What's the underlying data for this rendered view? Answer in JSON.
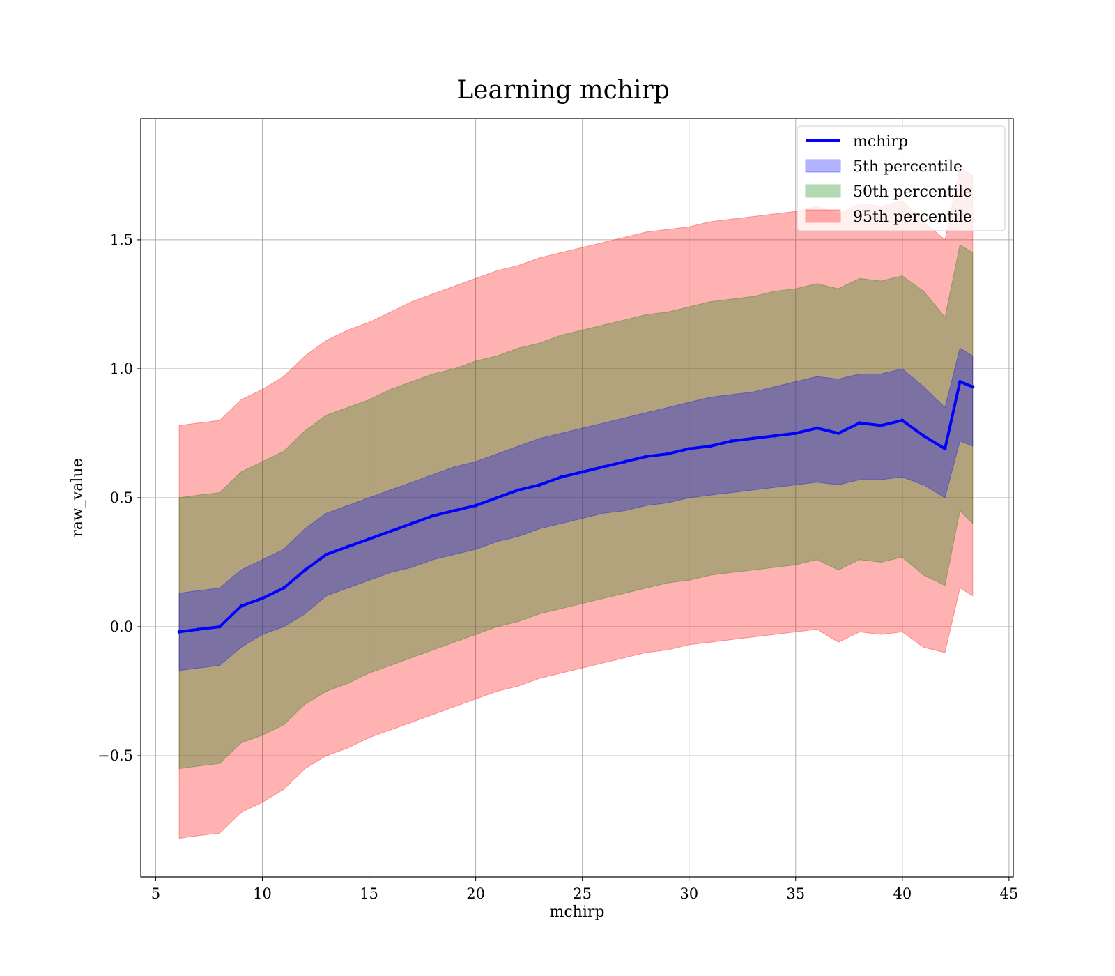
{
  "chart_data": {
    "type": "area",
    "title": "Learning mchirp",
    "xlabel": "mchirp",
    "ylabel": "raw_value",
    "xlim": [
      4.3,
      45.2
    ],
    "ylim": [
      -0.97,
      1.97
    ],
    "xticks": [
      5,
      10,
      15,
      20,
      25,
      30,
      35,
      40,
      45
    ],
    "xtick_labels": [
      "5",
      "10",
      "15",
      "20",
      "25",
      "30",
      "35",
      "40",
      "45"
    ],
    "yticks": [
      -0.5,
      0.0,
      0.5,
      1.0,
      1.5
    ],
    "ytick_labels": [
      "−0.5",
      "0.0",
      "0.5",
      "1.0",
      "1.5"
    ],
    "grid": true,
    "legend_position": "top-right",
    "x": [
      6.1,
      7,
      8,
      9,
      10,
      11,
      12,
      13,
      14,
      15,
      16,
      17,
      18,
      19,
      20,
      21,
      22,
      23,
      24,
      25,
      26,
      27,
      28,
      29,
      30,
      31,
      32,
      33,
      34,
      35,
      36,
      37,
      38,
      39,
      40,
      41,
      42,
      42.7,
      43.3
    ],
    "series": [
      {
        "name": "mchirp",
        "kind": "line",
        "color": "#0000ff",
        "values": [
          -0.02,
          -0.01,
          0.0,
          0.08,
          0.11,
          0.15,
          0.22,
          0.28,
          0.31,
          0.34,
          0.37,
          0.4,
          0.43,
          0.45,
          0.47,
          0.5,
          0.53,
          0.55,
          0.58,
          0.6,
          0.62,
          0.64,
          0.66,
          0.67,
          0.69,
          0.7,
          0.72,
          0.73,
          0.74,
          0.75,
          0.77,
          0.75,
          0.79,
          0.78,
          0.8,
          0.74,
          0.69,
          0.95,
          0.93
        ]
      },
      {
        "name": "5th percentile",
        "kind": "band",
        "color": "#0000ff",
        "lower": [
          -0.17,
          -0.16,
          -0.15,
          -0.08,
          -0.03,
          0.0,
          0.05,
          0.12,
          0.15,
          0.18,
          0.21,
          0.23,
          0.26,
          0.28,
          0.3,
          0.33,
          0.35,
          0.38,
          0.4,
          0.42,
          0.44,
          0.45,
          0.47,
          0.48,
          0.5,
          0.51,
          0.52,
          0.53,
          0.54,
          0.55,
          0.56,
          0.55,
          0.57,
          0.57,
          0.58,
          0.55,
          0.5,
          0.72,
          0.7
        ],
        "upper": [
          0.13,
          0.14,
          0.15,
          0.22,
          0.26,
          0.3,
          0.38,
          0.44,
          0.47,
          0.5,
          0.53,
          0.56,
          0.59,
          0.62,
          0.64,
          0.67,
          0.7,
          0.73,
          0.75,
          0.77,
          0.79,
          0.81,
          0.83,
          0.85,
          0.87,
          0.89,
          0.9,
          0.91,
          0.93,
          0.95,
          0.97,
          0.96,
          0.98,
          0.98,
          1.0,
          0.93,
          0.85,
          1.08,
          1.05
        ]
      },
      {
        "name": "50th percentile",
        "kind": "band",
        "color": "#008000",
        "lower": [
          -0.55,
          -0.54,
          -0.53,
          -0.45,
          -0.42,
          -0.38,
          -0.3,
          -0.25,
          -0.22,
          -0.18,
          -0.15,
          -0.12,
          -0.09,
          -0.06,
          -0.03,
          0.0,
          0.02,
          0.05,
          0.07,
          0.09,
          0.11,
          0.13,
          0.15,
          0.17,
          0.18,
          0.2,
          0.21,
          0.22,
          0.23,
          0.24,
          0.26,
          0.22,
          0.26,
          0.25,
          0.27,
          0.2,
          0.16,
          0.45,
          0.4
        ],
        "upper": [
          0.5,
          0.51,
          0.52,
          0.6,
          0.64,
          0.68,
          0.76,
          0.82,
          0.85,
          0.88,
          0.92,
          0.95,
          0.98,
          1.0,
          1.03,
          1.05,
          1.08,
          1.1,
          1.13,
          1.15,
          1.17,
          1.19,
          1.21,
          1.22,
          1.24,
          1.26,
          1.27,
          1.28,
          1.3,
          1.31,
          1.33,
          1.31,
          1.35,
          1.34,
          1.36,
          1.3,
          1.2,
          1.48,
          1.45
        ]
      },
      {
        "name": "95th percentile",
        "kind": "band",
        "color": "#ff0000",
        "lower": [
          -0.82,
          -0.81,
          -0.8,
          -0.72,
          -0.68,
          -0.63,
          -0.55,
          -0.5,
          -0.47,
          -0.43,
          -0.4,
          -0.37,
          -0.34,
          -0.31,
          -0.28,
          -0.25,
          -0.23,
          -0.2,
          -0.18,
          -0.16,
          -0.14,
          -0.12,
          -0.1,
          -0.09,
          -0.07,
          -0.06,
          -0.05,
          -0.04,
          -0.03,
          -0.02,
          -0.01,
          -0.06,
          -0.02,
          -0.03,
          -0.02,
          -0.08,
          -0.1,
          0.15,
          0.12
        ],
        "upper": [
          0.78,
          0.79,
          0.8,
          0.88,
          0.92,
          0.97,
          1.05,
          1.11,
          1.15,
          1.18,
          1.22,
          1.26,
          1.29,
          1.32,
          1.35,
          1.38,
          1.4,
          1.43,
          1.45,
          1.47,
          1.49,
          1.51,
          1.53,
          1.54,
          1.55,
          1.57,
          1.58,
          1.59,
          1.6,
          1.61,
          1.63,
          1.6,
          1.64,
          1.63,
          1.65,
          1.57,
          1.5,
          1.78,
          1.75
        ]
      }
    ],
    "legend": [
      {
        "label": "mchirp",
        "kind": "line",
        "color": "#0000ff"
      },
      {
        "label": "5th percentile",
        "kind": "patch",
        "color": "#0000ff"
      },
      {
        "label": "50th percentile",
        "kind": "patch",
        "color": "#008000"
      },
      {
        "label": "95th percentile",
        "kind": "patch",
        "color": "#ff0000"
      }
    ]
  }
}
